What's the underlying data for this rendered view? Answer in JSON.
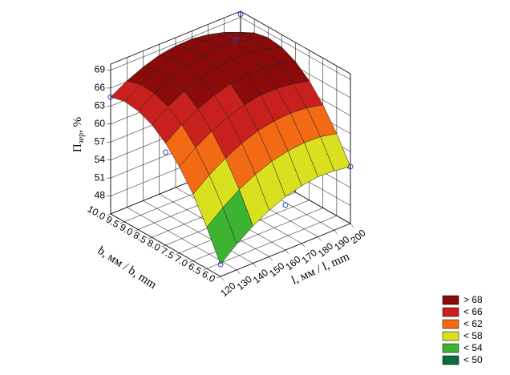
{
  "chart_data": {
    "type": "surface3d",
    "x_label": "l, мм / l, mm",
    "y_label": "b, мм / b, mm",
    "z_label": "П",
    "z_label_sub": "зер",
    "z_label_unit": ", %",
    "l_values": [
      120,
      130,
      140,
      150,
      160,
      170,
      180,
      190,
      200
    ],
    "b_values": [
      6,
      6.5,
      7,
      7.5,
      8,
      8.5,
      9,
      9.5,
      10
    ],
    "z": [
      [
        47.0,
        49.3,
        51.2,
        52.7,
        53.9,
        54.6,
        55.0,
        54.9,
        54.5
      ],
      [
        51.9,
        54.1,
        56.0,
        57.4,
        58.5,
        59.1,
        59.4,
        59.3,
        58.7
      ],
      [
        56.1,
        58.2,
        59.9,
        61.3,
        62.3,
        62.8,
        63.0,
        62.8,
        62.2
      ],
      [
        59.4,
        61.5,
        63.1,
        64.4,
        65.3,
        65.8,
        65.8,
        65.5,
        64.9
      ],
      [
        62.0,
        64.0,
        65.5,
        66.7,
        67.5,
        67.9,
        67.9,
        67.5,
        66.8
      ],
      [
        63.8,
        65.7,
        67.2,
        68.3,
        69.0,
        69.3,
        69.2,
        68.7,
        67.9
      ],
      [
        64.8,
        66.6,
        68.0,
        69.0,
        69.6,
        69.9,
        69.7,
        69.1,
        68.2
      ],
      [
        65.1,
        66.8,
        68.1,
        69.0,
        69.5,
        69.7,
        69.4,
        68.8,
        67.7
      ],
      [
        64.5,
        66.1,
        67.3,
        68.2,
        68.6,
        68.7,
        68.3,
        67.6,
        66.5
      ]
    ],
    "points": {
      "b": [
        10,
        10,
        8,
        6,
        6,
        6,
        9
      ],
      "l": [
        120,
        200,
        120,
        120,
        160,
        200,
        180
      ],
      "z": [
        64.5,
        69.5,
        60.5,
        47.0,
        52.5,
        54.5,
        70.0
      ]
    },
    "blim": [
      6,
      10
    ],
    "llim": [
      120,
      200
    ],
    "zlim": [
      45,
      70
    ],
    "zticks": [
      48,
      51,
      54,
      57,
      60,
      63,
      66,
      69
    ],
    "bticks": [
      {
        "value": 6,
        "label": "6.0"
      },
      {
        "value": 6.5,
        "label": "6.5"
      },
      {
        "value": 7,
        "label": "7.0"
      },
      {
        "value": 7.5,
        "label": "7.5"
      },
      {
        "value": 8,
        "label": "8.0"
      },
      {
        "value": 8.5,
        "label": "8.5"
      },
      {
        "value": 9,
        "label": "9.0"
      },
      {
        "value": 9.5,
        "label": "9.5"
      },
      {
        "value": 10,
        "label": "10.0"
      }
    ],
    "lticks": [
      120,
      130,
      140,
      150,
      160,
      170,
      180,
      190,
      200
    ],
    "color_scale": [
      {
        "label": "> 68",
        "value": 68,
        "color": "#8b0a0a"
      },
      {
        "label": "< 66",
        "value": 66,
        "color": "#c8201c"
      },
      {
        "label": "< 62",
        "value": 62,
        "color": "#f26a14"
      },
      {
        "label": "< 58",
        "value": 58,
        "color": "#d8e020"
      },
      {
        "label": "< 54",
        "value": 54,
        "color": "#3cb432"
      },
      {
        "label": "< 50",
        "value": 50,
        "color": "#0f6a3c"
      }
    ],
    "grid": true
  }
}
